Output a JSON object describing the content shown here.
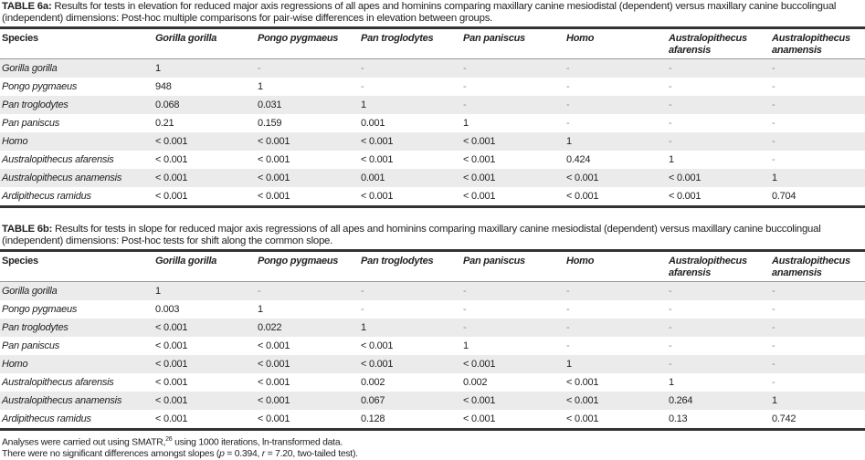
{
  "columns": [
    "Species",
    "Gorilla gorilla",
    "Pongo pygmaeus",
    "Pan troglodytes",
    "Pan paniscus",
    "Homo",
    "Australopithecus afarensis",
    "Australopithecus anamensis"
  ],
  "table_a": {
    "label": "TABLE 6a:",
    "caption": " Results for tests in elevation for reduced major axis regressions of all apes and hominins comparing maxillary canine mesiodistal (dependent) versus maxillary canine buccolingual (independent) dimensions: Post-hoc multiple comparisons for pair-wise differences in elevation between groups.",
    "rows": [
      [
        "Gorilla gorilla",
        "1",
        "-",
        "-",
        "-",
        "-",
        "-",
        "-"
      ],
      [
        "Pongo pygmaeus",
        "948",
        "1",
        "-",
        "-",
        "-",
        "-",
        "-"
      ],
      [
        "Pan troglodytes",
        "0.068",
        "0.031",
        "1",
        "-",
        "-",
        "-",
        "-"
      ],
      [
        "Pan paniscus",
        "0.21",
        "0.159",
        "0.001",
        "1",
        "-",
        "-",
        "-"
      ],
      [
        "Homo",
        "< 0.001",
        "< 0.001",
        "< 0.001",
        "< 0.001",
        "1",
        "-",
        "-"
      ],
      [
        "Australopithecus afarensis",
        "< 0.001",
        "< 0.001",
        "< 0.001",
        "< 0.001",
        "0.424",
        "1",
        "-"
      ],
      [
        "Australopithecus anamensis",
        "< 0.001",
        "< 0.001",
        "0.001",
        "< 0.001",
        "< 0.001",
        "< 0.001",
        "1"
      ],
      [
        "Ardipithecus ramidus",
        "< 0.001",
        "< 0.001",
        "< 0.001",
        "< 0.001",
        "< 0.001",
        "< 0.001",
        "0.704"
      ]
    ]
  },
  "table_b": {
    "label": "TABLE 6b:",
    "caption": " Results for tests in slope for reduced major axis regressions of all apes and hominins comparing maxillary canine mesiodistal (dependent) versus maxillary canine buccolingual (independent) dimensions: Post-hoc tests for shift along the common slope.",
    "rows": [
      [
        "Gorilla gorilla",
        "1",
        "-",
        "-",
        "-",
        "-",
        "-",
        "-"
      ],
      [
        "Pongo pygmaeus",
        "0.003",
        "1",
        "-",
        "-",
        "-",
        "-",
        "-"
      ],
      [
        "Pan troglodytes",
        "< 0.001",
        "0.022",
        "1",
        "-",
        "-",
        "-",
        "-"
      ],
      [
        "Pan paniscus",
        "< 0.001",
        "< 0.001",
        "< 0.001",
        "1",
        "-",
        "-",
        "-"
      ],
      [
        "Homo",
        "< 0.001",
        "< 0.001",
        "< 0.001",
        "< 0.001",
        "1",
        "-",
        "-"
      ],
      [
        "Australopithecus afarensis",
        "< 0.001",
        "< 0.001",
        "0.002",
        "0.002",
        "< 0.001",
        "1",
        "-"
      ],
      [
        "Australopithecus anamensis",
        "< 0.001",
        "< 0.001",
        "0.067",
        "< 0.001",
        "< 0.001",
        "0.264",
        "1"
      ],
      [
        "Ardipithecus ramidus",
        "< 0.001",
        "< 0.001",
        "0.128",
        "< 0.001",
        "< 0.001",
        "0.13",
        "0.742"
      ]
    ]
  },
  "footnotes": {
    "line1_a": "Analyses were carried out using SMATR,",
    "line1_ref": "26",
    "line1_b": " using 1000 iterations, ln-transformed data.",
    "line2_a": "There were no significant differences amongst slopes (",
    "line2_p": "p",
    "line2_b": " = 0.394, ",
    "line2_r": "r",
    "line2_c": " = 7.20, two-tailed test)."
  }
}
